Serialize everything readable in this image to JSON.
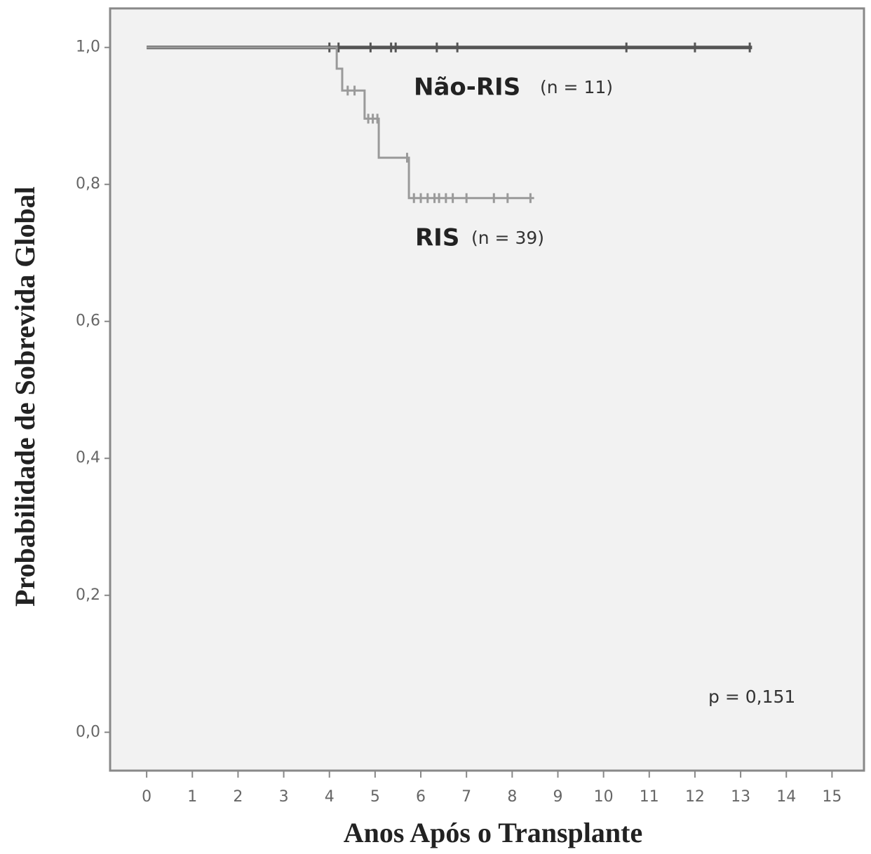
{
  "chart_data": {
    "type": "km",
    "y_label": "Probabilidade de Sobrevida Global",
    "x_label": "Anos Após o Transplante",
    "annotation": "p = 0,151",
    "xlim": [
      -0.8,
      15.7
    ],
    "ylim": [
      -0.056,
      1.057
    ],
    "xticks": [
      0,
      1,
      2,
      3,
      4,
      5,
      6,
      7,
      8,
      9,
      10,
      11,
      12,
      13,
      14,
      15
    ],
    "yticks": [
      {
        "value": 0,
        "label": "0,0"
      },
      {
        "value": 0.2,
        "label": "0,2"
      },
      {
        "value": 0.4,
        "label": "0,4"
      },
      {
        "value": 0.6,
        "label": "0,6"
      },
      {
        "value": 0.8,
        "label": "0,8"
      },
      {
        "value": 1,
        "label": "1,0"
      }
    ],
    "series": [
      {
        "name": "Não-RIS",
        "n_label": "(n = 11)",
        "color": "#555555",
        "x": [
          0,
          13.25
        ],
        "values": [
          1,
          1
        ],
        "censored": {
          "x": [
            4.0,
            4.2,
            4.9,
            5.35,
            5.45,
            6.35,
            6.8,
            10.5,
            12.0,
            13.2
          ],
          "values": [
            1,
            1,
            1,
            1,
            1,
            1,
            1,
            1,
            1,
            1
          ]
        }
      },
      {
        "name": "RIS",
        "n_label": "(n = 39)",
        "color": "#9a9a9a",
        "x": [
          0,
          4.16,
          4.16,
          4.28,
          4.28,
          4.77,
          4.77,
          5.08,
          5.08,
          5.74,
          5.74,
          8.48
        ],
        "values": [
          1,
          1,
          0.969,
          0.969,
          0.937,
          0.937,
          0.896,
          0.896,
          0.839,
          0.839,
          0.78,
          0.78
        ],
        "censored": {
          "x": [
            4.4,
            4.55,
            4.85,
            4.95,
            5.05,
            5.7,
            5.85,
            6.0,
            6.15,
            6.3,
            6.4,
            6.55,
            6.7,
            7.0,
            7.6,
            7.9,
            8.4
          ],
          "values": [
            0.937,
            0.937,
            0.896,
            0.896,
            0.896,
            0.839,
            0.78,
            0.78,
            0.78,
            0.78,
            0.78,
            0.78,
            0.78,
            0.78,
            0.78,
            0.78,
            0.78
          ]
        }
      }
    ]
  }
}
